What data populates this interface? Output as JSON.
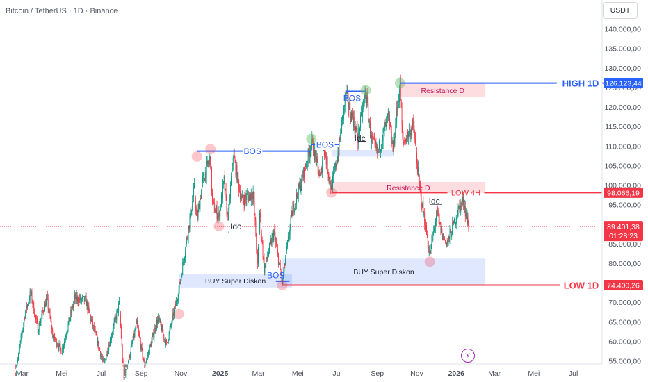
{
  "header": {
    "title": "Bitcoin / TetherUS · 1D · Binance",
    "currency": "USDT"
  },
  "chart_data": {
    "type": "candlestick",
    "symbol": "Bitcoin / TetherUS",
    "interval": "1D",
    "exchange": "Binance",
    "ylim": [
      55000,
      141000
    ],
    "y_ticks": [
      "140.000,00",
      "135.000,00",
      "130.000,00",
      "125.000,00",
      "120.000,00",
      "115.000,00",
      "110.000,00",
      "105.000,00",
      "100.000,00",
      "95.000,00",
      "90.000,00",
      "85.000,00",
      "80.000,00",
      "75.000,00",
      "70.000,00",
      "65.000,00",
      "60.000,00",
      "55.000,00"
    ],
    "y_tick_values": [
      140000,
      135000,
      130000,
      125000,
      120000,
      115000,
      110000,
      105000,
      100000,
      95000,
      90000,
      85000,
      80000,
      75000,
      70000,
      65000,
      60000,
      55000
    ],
    "x_ticks": [
      {
        "label": "Mar",
        "date": "2024-03-01"
      },
      {
        "label": "Mei",
        "date": "2024-05-01"
      },
      {
        "label": "Jul",
        "date": "2024-07-01"
      },
      {
        "label": "Sep",
        "date": "2024-09-01"
      },
      {
        "label": "Nov",
        "date": "2024-11-01"
      },
      {
        "label": "2025",
        "date": "2025-01-01"
      },
      {
        "label": "Mar",
        "date": "2025-03-01"
      },
      {
        "label": "Mei",
        "date": "2025-05-01"
      },
      {
        "label": "Jul",
        "date": "2025-07-01"
      },
      {
        "label": "Sep",
        "date": "2025-09-01"
      },
      {
        "label": "Nov",
        "date": "2025-11-01"
      },
      {
        "label": "2026",
        "date": "2026-01-01"
      },
      {
        "label": "Mar",
        "date": "2026-03-01"
      },
      {
        "label": "Mei",
        "date": "2026-05-01"
      },
      {
        "label": "Jul",
        "date": "2026-07-01"
      }
    ],
    "price_path": [
      [
        "2024-02-20",
        52000
      ],
      [
        "2024-03-05",
        67000
      ],
      [
        "2024-03-14",
        72500
      ],
      [
        "2024-03-25",
        63000
      ],
      [
        "2024-04-08",
        71000
      ],
      [
        "2024-04-17",
        61500
      ],
      [
        "2024-05-01",
        57500
      ],
      [
        "2024-05-21",
        71000
      ],
      [
        "2024-06-07",
        70500
      ],
      [
        "2024-06-24",
        60500
      ],
      [
        "2024-07-05",
        54000
      ],
      [
        "2024-07-29",
        69500
      ],
      [
        "2024-08-05",
        50000
      ],
      [
        "2024-08-25",
        64500
      ],
      [
        "2024-09-06",
        53500
      ],
      [
        "2024-09-27",
        66000
      ],
      [
        "2024-10-10",
        59000
      ],
      [
        "2024-10-29",
        73000
      ],
      [
        "2024-11-12",
        88000
      ],
      [
        "2024-11-22",
        99000
      ],
      [
        "2024-11-26",
        91000
      ],
      [
        "2024-12-05",
        101000
      ],
      [
        "2024-12-17",
        107000
      ],
      [
        "2024-12-20",
        95000
      ],
      [
        "2024-12-30",
        92000
      ],
      [
        "2025-01-07",
        101000
      ],
      [
        "2025-01-13",
        90500
      ],
      [
        "2025-01-21",
        108000
      ],
      [
        "2025-02-03",
        96000
      ],
      [
        "2025-02-21",
        98000
      ],
      [
        "2025-02-28",
        79000
      ],
      [
        "2025-03-03",
        93000
      ],
      [
        "2025-03-10",
        78500
      ],
      [
        "2025-03-25",
        88000
      ],
      [
        "2025-04-07",
        75000
      ],
      [
        "2025-04-22",
        93000
      ],
      [
        "2025-05-12",
        104000
      ],
      [
        "2025-05-22",
        111000
      ],
      [
        "2025-06-05",
        101500
      ],
      [
        "2025-06-10",
        110000
      ],
      [
        "2025-06-22",
        99000
      ],
      [
        "2025-07-03",
        109000
      ],
      [
        "2025-07-14",
        123000
      ],
      [
        "2025-08-02",
        112000
      ],
      [
        "2025-08-14",
        124000
      ],
      [
        "2025-08-22",
        112000
      ],
      [
        "2025-09-01",
        108000
      ],
      [
        "2025-09-18",
        117500
      ],
      [
        "2025-09-25",
        109000
      ],
      [
        "2025-10-06",
        126000
      ],
      [
        "2025-10-10",
        111000
      ],
      [
        "2025-10-27",
        115000
      ],
      [
        "2025-11-04",
        101000
      ],
      [
        "2025-11-21",
        82000
      ],
      [
        "2025-12-02",
        93000
      ],
      [
        "2025-12-10",
        87000
      ],
      [
        "2025-12-18",
        85000
      ],
      [
        "2026-01-05",
        94000
      ],
      [
        "2026-01-12",
        96000
      ],
      [
        "2026-01-20",
        89400
      ]
    ],
    "last_price": "89.401,38",
    "countdown": "01:28:23",
    "levels": {
      "high_1d": {
        "label": "HIGH 1D",
        "value": 126123.44,
        "tag": "126.123,44",
        "color": "#2962ff"
      },
      "low_4h": {
        "label": "LOW 4H",
        "value": 98066.19,
        "tag": "98.066,19",
        "color": "#f23645"
      },
      "low_1d": {
        "label": "LOW 1D",
        "value": 74400.26,
        "tag": "74.400,26",
        "color": "#f23645"
      }
    },
    "zones": [
      {
        "label": "Resistance D",
        "from": "2025-10-06",
        "to": "2026-02-15",
        "low": 122500,
        "high": 126000,
        "kind": "resistance"
      },
      {
        "label": "Resistance D",
        "from": "2025-06-22",
        "to": "2026-02-15",
        "low": 98000,
        "high": 100800,
        "kind": "resistance"
      },
      {
        "label": "BUY Super Diskon",
        "from": "2024-10-29",
        "to": "2025-04-22",
        "low": 73800,
        "high": 77300,
        "kind": "buy"
      },
      {
        "label": "BUY Super Diskon",
        "from": "2025-04-07",
        "to": "2026-02-15",
        "low": 74500,
        "high": 81200,
        "kind": "buy"
      },
      {
        "label": "",
        "from": "2025-06-22",
        "to": "2025-09-25",
        "low": 107300,
        "high": 109000,
        "kind": "buy"
      }
    ],
    "annotations": [
      {
        "label": "BOS",
        "color": "#2962ff",
        "from": "2024-11-26",
        "to": "2025-05-22",
        "value": 108700,
        "text_at": "2025-02-20"
      },
      {
        "label": "BOS",
        "color": "#2962ff",
        "from": "2025-05-22",
        "to": "2025-07-03",
        "value": 110400,
        "text_at": "2025-06-12"
      },
      {
        "label": "BOS",
        "color": "#2962ff",
        "from": "2025-07-14",
        "to": "2025-08-14",
        "value": 124000,
        "text_at": "2025-07-24",
        "text_value": 122300
      },
      {
        "label": "BOS",
        "color": "#2962ff",
        "from": "2025-03-28",
        "to": "2025-04-18",
        "value": 75400,
        "text_at": "2025-03-28",
        "text_value": 77000
      },
      {
        "label": "Idc",
        "color": "#2a2e39",
        "from": "2024-12-30",
        "to": "2025-02-28",
        "value": 89500,
        "text_at": "2025-01-25"
      },
      {
        "label": "Idc",
        "color": "#2a2e39",
        "from": "2025-08-02",
        "to": "2025-08-14",
        "value": 111200,
        "text_at": "2025-08-05",
        "text_value": 112100
      },
      {
        "label": "Idc",
        "color": "#2a2e39",
        "from": "2025-11-21",
        "to": "2025-12-10",
        "value": 95100,
        "text_at": "2025-11-28",
        "text_value": 96000
      }
    ],
    "circles": [
      {
        "date": "2024-10-29",
        "value": 67000,
        "color": "red"
      },
      {
        "date": "2024-11-26",
        "value": 107300,
        "color": "red"
      },
      {
        "date": "2024-12-17",
        "value": 109200,
        "color": "red"
      },
      {
        "date": "2024-12-30",
        "value": 89500,
        "color": "red"
      },
      {
        "date": "2025-04-07",
        "value": 74400,
        "color": "red"
      },
      {
        "date": "2025-05-22",
        "value": 111800,
        "color": "green"
      },
      {
        "date": "2025-06-22",
        "value": 98100,
        "color": "red"
      },
      {
        "date": "2025-08-14",
        "value": 124300,
        "color": "green"
      },
      {
        "date": "2025-10-06",
        "value": 126100,
        "color": "green"
      },
      {
        "date": "2025-11-21",
        "value": 80400,
        "color": "red"
      }
    ]
  }
}
